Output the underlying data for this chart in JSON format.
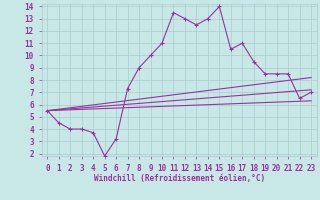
{
  "xlabel": "Windchill (Refroidissement éolien,°C)",
  "background_color": "#c8e8e8",
  "grid_color": "#aacccc",
  "line_color": "#993399",
  "xlim": [
    -0.5,
    23.5
  ],
  "ylim": [
    1.8,
    14.2
  ],
  "xticks": [
    0,
    1,
    2,
    3,
    4,
    5,
    6,
    7,
    8,
    9,
    10,
    11,
    12,
    13,
    14,
    15,
    16,
    17,
    18,
    19,
    20,
    21,
    22,
    23
  ],
  "yticks": [
    2,
    3,
    4,
    5,
    6,
    7,
    8,
    9,
    10,
    11,
    12,
    13,
    14
  ],
  "main_x": [
    0,
    1,
    2,
    3,
    4,
    5,
    6,
    7,
    8,
    9,
    10,
    11,
    12,
    13,
    14,
    15,
    16,
    17,
    18,
    19,
    20,
    21,
    22,
    23
  ],
  "main_y": [
    5.5,
    4.5,
    4.0,
    4.0,
    3.7,
    1.8,
    3.2,
    7.3,
    9.0,
    10.0,
    11.0,
    13.5,
    13.0,
    12.5,
    13.0,
    14.0,
    10.5,
    11.0,
    9.5,
    8.5,
    8.5,
    8.5,
    6.5,
    7.0
  ],
  "line1_x": [
    0,
    23
  ],
  "line1_y": [
    5.5,
    6.3
  ],
  "line2_x": [
    0,
    23
  ],
  "line2_y": [
    5.5,
    7.2
  ],
  "line3_x": [
    0,
    23
  ],
  "line3_y": [
    5.5,
    8.2
  ],
  "tick_fontsize": 5.5,
  "xlabel_fontsize": 5.5
}
